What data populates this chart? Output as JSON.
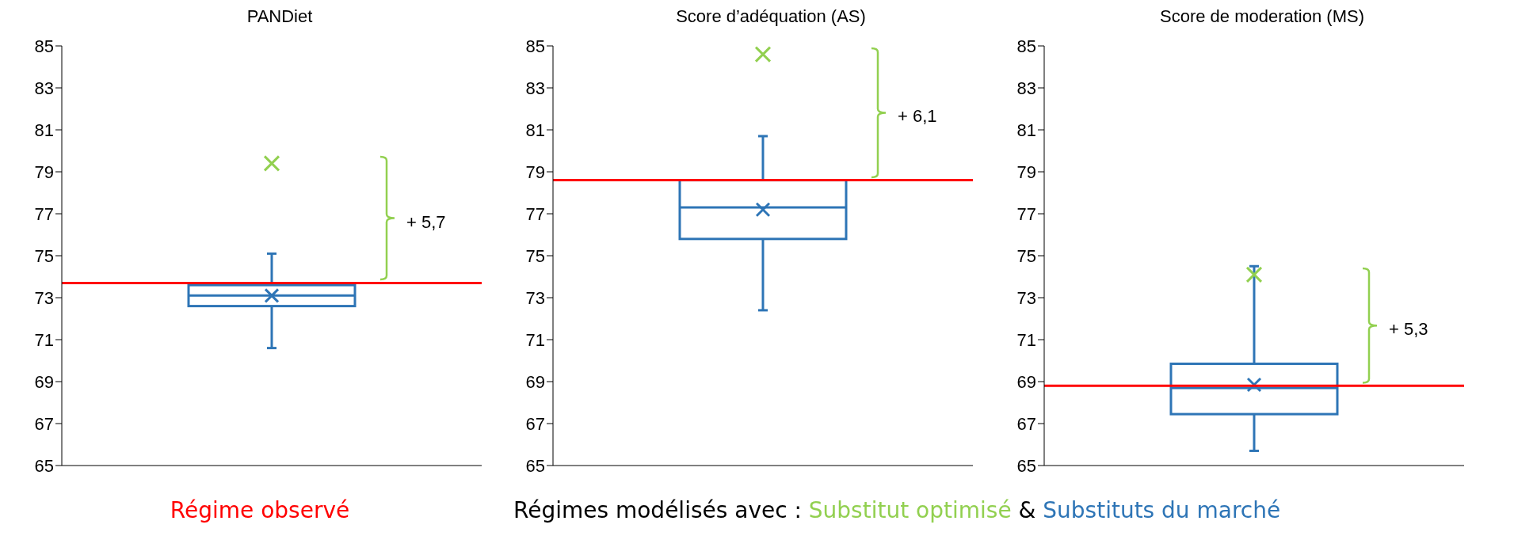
{
  "chart_data": [
    {
      "type": "box",
      "title": "PANDiet",
      "categories": [
        null
      ],
      "ylim": [
        65,
        85
      ],
      "yticks": [
        65,
        67,
        69,
        71,
        73,
        75,
        77,
        79,
        81,
        83,
        85
      ],
      "series": [
        {
          "type": "box",
          "color": "#2e75b6",
          "boxes": [
            {
              "low": 70.6,
              "q1": 72.6,
              "median": 73.1,
              "q3": 73.6,
              "high": 75.1,
              "mean": 73.1
            }
          ]
        },
        {
          "type": "scatter",
          "color": "#92d050",
          "marker": "cross",
          "values": [
            79.4
          ]
        }
      ],
      "ref_lines": [
        {
          "axis": "y",
          "value": 73.7,
          "color": "#ff0000"
        }
      ],
      "annotations": [
        "+ 5,7"
      ]
    },
    {
      "type": "box",
      "title": "Score d’adéquation (AS)",
      "categories": [
        null
      ],
      "ylim": [
        65,
        85
      ],
      "yticks": [
        65,
        67,
        69,
        71,
        73,
        75,
        77,
        79,
        81,
        83,
        85
      ],
      "series": [
        {
          "type": "box",
          "color": "#2e75b6",
          "boxes": [
            {
              "low": 72.4,
              "q1": 75.8,
              "median": 77.3,
              "q3": 78.6,
              "high": 80.7,
              "mean": 77.2
            }
          ]
        },
        {
          "type": "scatter",
          "color": "#92d050",
          "marker": "cross",
          "values": [
            84.6
          ]
        }
      ],
      "ref_lines": [
        {
          "axis": "y",
          "value": 78.6,
          "color": "#ff0000"
        }
      ],
      "annotations": [
        "+ 6,1"
      ]
    },
    {
      "type": "box",
      "title": "Score de moderation (MS)",
      "categories": [
        null
      ],
      "ylim": [
        65,
        85
      ],
      "yticks": [
        65,
        67,
        69,
        71,
        73,
        75,
        77,
        79,
        81,
        83,
        85
      ],
      "series": [
        {
          "type": "box",
          "color": "#2e75b6",
          "boxes": [
            {
              "low": 65.7,
              "q1": 67.45,
              "median": 68.7,
              "q3": 69.85,
              "high": 74.5,
              "mean": 68.85
            }
          ]
        },
        {
          "type": "scatter",
          "color": "#92d050",
          "marker": "cross",
          "values": [
            74.1
          ]
        }
      ],
      "ref_lines": [
        {
          "axis": "y",
          "value": 68.8,
          "color": "#ff0000"
        }
      ],
      "annotations": [
        "+ 5,3"
      ]
    },
    {
      "type": "other",
      "annotations": [
        "Régime observé",
        "Régimes modélisés avec :",
        "Substitut optimisé",
        "&",
        "Substituts du marché"
      ]
    }
  ]
}
